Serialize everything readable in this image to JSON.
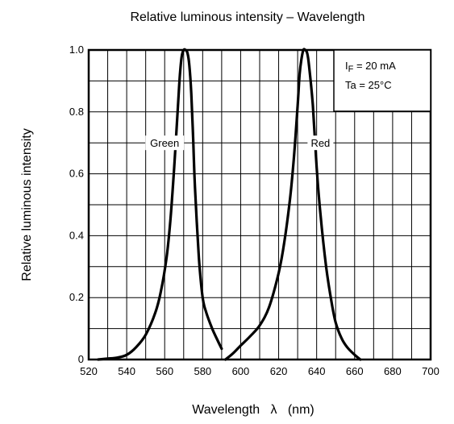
{
  "chart_data": {
    "type": "line",
    "title": "Relative luminous intensity – Wavelength",
    "xlabel": "Wavelength   λ   (nm)",
    "ylabel": "Relative luminous intensity",
    "xlim": [
      520,
      700
    ],
    "ylim": [
      0,
      1.0
    ],
    "x_ticks": [
      520,
      540,
      560,
      580,
      600,
      620,
      640,
      660,
      680,
      700
    ],
    "y_ticks": [
      {
        "value": 0,
        "label": "0"
      },
      {
        "value": 0.2,
        "label": "0.2"
      },
      {
        "value": 0.4,
        "label": "0.4"
      },
      {
        "value": 0.6,
        "label": "0.6"
      },
      {
        "value": 0.8,
        "label": "0.8"
      },
      {
        "value": 1.0,
        "label": "1.0"
      }
    ],
    "grid": true,
    "conditions": {
      "current_prefix": "I",
      "current_sub": "F",
      "current_value": " = 20 mA",
      "temperature": "Ta = 25°C"
    },
    "series": [
      {
        "name": "Green",
        "label_at": {
          "x": 560,
          "y": 0.7
        },
        "x": [
          525,
          530,
          535,
          540,
          545,
          550,
          555,
          558,
          561,
          563,
          565,
          567,
          568,
          569,
          570,
          571,
          572,
          573,
          574,
          575,
          576,
          578,
          580,
          582,
          585,
          588,
          590
        ],
        "y": [
          0.0,
          0.003,
          0.006,
          0.015,
          0.04,
          0.08,
          0.15,
          0.22,
          0.33,
          0.45,
          0.62,
          0.82,
          0.92,
          0.98,
          1.0,
          1.0,
          0.99,
          0.95,
          0.86,
          0.71,
          0.55,
          0.33,
          0.2,
          0.15,
          0.1,
          0.06,
          0.035
        ]
      },
      {
        "name": "Red",
        "label_at": {
          "x": 642,
          "y": 0.7
        },
        "x": [
          592,
          596,
          600,
          605,
          610,
          615,
          620,
          623,
          626,
          628,
          630,
          631,
          632,
          633,
          634,
          635,
          636,
          638,
          640,
          642,
          645,
          648,
          650,
          653,
          656,
          660,
          663
        ],
        "y": [
          0.0,
          0.02,
          0.045,
          0.075,
          0.11,
          0.17,
          0.28,
          0.38,
          0.52,
          0.65,
          0.82,
          0.92,
          0.97,
          1.0,
          1.0,
          0.99,
          0.95,
          0.82,
          0.62,
          0.47,
          0.3,
          0.18,
          0.12,
          0.07,
          0.04,
          0.015,
          0.0
        ]
      }
    ]
  }
}
